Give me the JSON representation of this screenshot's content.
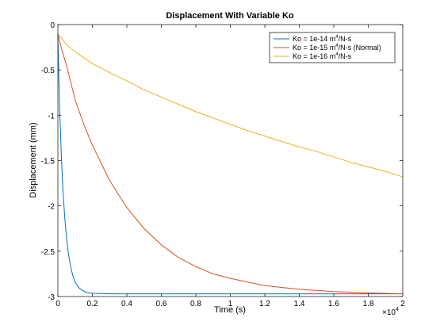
{
  "chart_data": {
    "type": "line",
    "title": "Displacement With Variable Ko",
    "xlabel": "Time (s)",
    "ylabel": "Displacement (mm)",
    "x_multiplier_label": "×10",
    "x_multiplier_exponent": "4",
    "xlim": [
      0,
      20000
    ],
    "ylim": [
      -3,
      0
    ],
    "x_ticks": [
      0,
      2000,
      4000,
      6000,
      8000,
      10000,
      12000,
      14000,
      16000,
      18000,
      20000
    ],
    "x_tick_labels": [
      "0",
      "0.2",
      "0.4",
      "0.6",
      "0.8",
      "1",
      "1.2",
      "1.4",
      "1.6",
      "1.8",
      "2"
    ],
    "y_ticks": [
      0,
      -0.5,
      -1,
      -1.5,
      -2,
      -2.5,
      -3
    ],
    "y_tick_labels": [
      "0",
      "-0.5",
      "-1",
      "-1.5",
      "-2",
      "-2.5",
      "-3"
    ],
    "grid": false,
    "legend_position": "top-right",
    "series": [
      {
        "legend_prefix": "Ko = 1e-14 m",
        "legend_sup": "4",
        "legend_suffix": "/N-s",
        "color": "#0072bd",
        "x": [
          0,
          50,
          100,
          200,
          300,
          400,
          500,
          600,
          700,
          800,
          900,
          1000,
          1200,
          1400,
          1600,
          1800,
          2000,
          3000,
          5000,
          10000,
          15000,
          20000
        ],
        "y": [
          -0.1,
          -0.55,
          -0.9,
          -1.45,
          -1.85,
          -2.13,
          -2.35,
          -2.51,
          -2.63,
          -2.72,
          -2.79,
          -2.84,
          -2.9,
          -2.93,
          -2.95,
          -2.96,
          -2.965,
          -2.97,
          -2.97,
          -2.97,
          -2.97,
          -2.97
        ]
      },
      {
        "legend_prefix": "Ko = 1e-15 m",
        "legend_sup": "4",
        "legend_suffix": "/N-s (Normal)",
        "color": "#d95319",
        "x": [
          0,
          200,
          500,
          1000,
          1500,
          2000,
          3000,
          4000,
          5000,
          6000,
          7000,
          8000,
          9000,
          10000,
          12000,
          14000,
          16000,
          18000,
          20000
        ],
        "y": [
          -0.1,
          -0.26,
          -0.45,
          -0.83,
          -1.1,
          -1.33,
          -1.72,
          -2.02,
          -2.25,
          -2.43,
          -2.57,
          -2.67,
          -2.75,
          -2.8,
          -2.88,
          -2.92,
          -2.945,
          -2.96,
          -2.97
        ]
      },
      {
        "legend_prefix": "Ko = 1e-16 m",
        "legend_sup": "4",
        "legend_suffix": "/N-s",
        "color": "#edb120",
        "x": [
          0,
          200,
          500,
          1000,
          2000,
          3000,
          4000,
          5000,
          6000,
          7000,
          8000,
          9000,
          10000,
          11000,
          12000,
          13000,
          14000,
          15000,
          16000,
          17000,
          18000,
          19000,
          20000
        ],
        "y": [
          -0.1,
          -0.15,
          -0.22,
          -0.3,
          -0.43,
          -0.53,
          -0.62,
          -0.72,
          -0.8,
          -0.88,
          -0.96,
          -1.03,
          -1.1,
          -1.17,
          -1.23,
          -1.29,
          -1.35,
          -1.4,
          -1.46,
          -1.52,
          -1.57,
          -1.62,
          -1.68
        ]
      }
    ]
  }
}
